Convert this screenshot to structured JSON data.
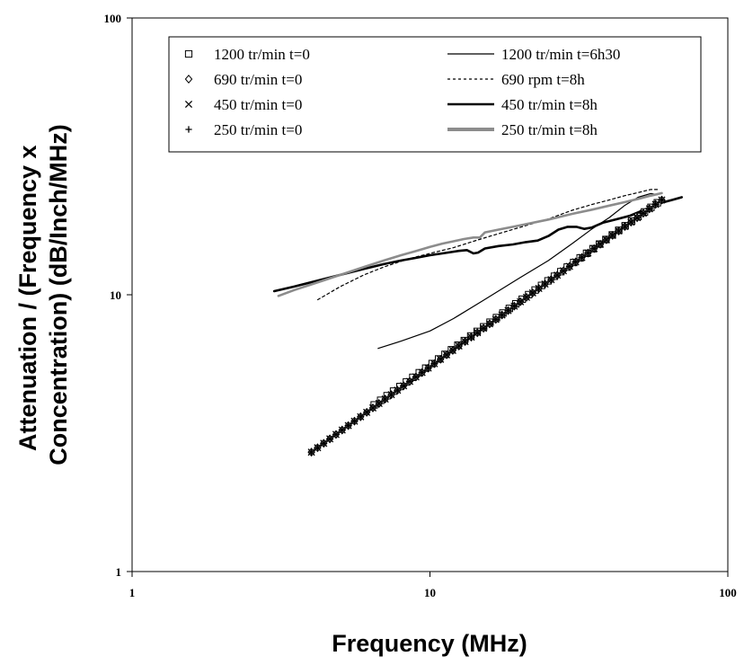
{
  "chart_data": {
    "type": "line",
    "x_scale": "log",
    "y_scale": "log",
    "xlim": [
      1,
      100
    ],
    "ylim": [
      1,
      100
    ],
    "x_ticks": [
      "1",
      "10",
      "100"
    ],
    "y_ticks": [
      "1",
      "10",
      "100"
    ],
    "xlabel": "Frequency (MHz)",
    "ylabel_lines": [
      "Attenuation / (Frequency x",
      "Concentration) (dB/Inch/MHz)"
    ],
    "grid": false,
    "legend_position": "top-right",
    "legend": [
      {
        "label": "1200 tr/min  t=0",
        "style": "square-marker"
      },
      {
        "label": "1200 tr/min  t=6h30",
        "style": "thin-line"
      },
      {
        "label": "690 tr/min  t=0",
        "style": "diamond-marker"
      },
      {
        "label": "690 rpm  t=8h",
        "style": "dashed-line"
      },
      {
        "label": "450 tr/min t=0",
        "style": "x-marker"
      },
      {
        "label": "450 tr/min t=8h",
        "style": "thick-black-line"
      },
      {
        "label": "250 tr/min t=0",
        "style": "plus-marker"
      },
      {
        "label": "250 tr/min t=8h",
        "style": "thick-gray-line"
      }
    ],
    "series": [
      {
        "name": "1200 tr/min  t=0",
        "marker": "square",
        "x_start": 6.5,
        "x_end": 58,
        "y_start": 4.0,
        "y_end": 21.5,
        "count": 45
      },
      {
        "name": "690 tr/min  t=0",
        "marker": "diamond",
        "x_start": 4.0,
        "x_end": 60,
        "y_start": 2.7,
        "y_end": 22,
        "count": 58
      },
      {
        "name": "450 tr/min t=0",
        "marker": "x",
        "x_start": 4.0,
        "x_end": 60,
        "y_start": 2.7,
        "y_end": 22,
        "count": 58
      },
      {
        "name": "250 tr/min t=0",
        "marker": "plus",
        "x_start": 4.0,
        "x_end": 60,
        "y_start": 2.7,
        "y_end": 22,
        "count": 58
      },
      {
        "name": "1200 tr/min  t=6h30",
        "line": "thin",
        "color": "#000000",
        "points": [
          [
            6.7,
            6.4
          ],
          [
            8,
            6.8
          ],
          [
            10,
            7.4
          ],
          [
            12,
            8.2
          ],
          [
            15,
            9.5
          ],
          [
            20,
            11.5
          ],
          [
            25,
            13.3
          ],
          [
            30,
            15.3
          ],
          [
            35,
            17.3
          ],
          [
            40,
            19
          ],
          [
            45,
            21
          ],
          [
            50,
            22.5
          ],
          [
            55,
            23.2
          ],
          [
            58,
            23
          ]
        ]
      },
      {
        "name": "690 rpm  t=8h",
        "line": "dashed",
        "color": "#000000",
        "points": [
          [
            4.2,
            9.6
          ],
          [
            5,
            10.7
          ],
          [
            6,
            11.8
          ],
          [
            7,
            12.6
          ],
          [
            8.5,
            13.5
          ],
          [
            10,
            14.1
          ],
          [
            12,
            14.8
          ],
          [
            14,
            15.6
          ],
          [
            16,
            16.3
          ],
          [
            20,
            17.5
          ],
          [
            25,
            18.8
          ],
          [
            30,
            20.2
          ],
          [
            35,
            21.2
          ],
          [
            40,
            22
          ],
          [
            45,
            22.8
          ],
          [
            50,
            23.4
          ],
          [
            55,
            24
          ],
          [
            58,
            24
          ]
        ]
      },
      {
        "name": "450 tr/min t=8h",
        "line": "thick",
        "color": "#000000",
        "points": [
          [
            3,
            10.3
          ],
          [
            3.5,
            10.7
          ],
          [
            4,
            11.1
          ],
          [
            5,
            11.8
          ],
          [
            6,
            12.4
          ],
          [
            7,
            12.9
          ],
          [
            8,
            13.3
          ],
          [
            9,
            13.6
          ],
          [
            10,
            13.9
          ],
          [
            11,
            14.1
          ],
          [
            12.5,
            14.4
          ],
          [
            13.3,
            14.5
          ],
          [
            14,
            14.1
          ],
          [
            14.5,
            14.2
          ],
          [
            15.3,
            14.7
          ],
          [
            17,
            15.0
          ],
          [
            19,
            15.2
          ],
          [
            21,
            15.5
          ],
          [
            23,
            15.7
          ],
          [
            25,
            16.3
          ],
          [
            27,
            17.2
          ],
          [
            29,
            17.6
          ],
          [
            31,
            17.6
          ],
          [
            33,
            17.3
          ],
          [
            35,
            17.5
          ],
          [
            38,
            18.2
          ],
          [
            42,
            18.7
          ],
          [
            47,
            19.3
          ],
          [
            52,
            20.2
          ],
          [
            58,
            21.3
          ],
          [
            65,
            22.0
          ],
          [
            70,
            22.5
          ]
        ]
      },
      {
        "name": "250 tr/min t=8h",
        "line": "thick",
        "color": "#8c8c8c",
        "points": [
          [
            3.1,
            9.9
          ],
          [
            3.5,
            10.4
          ],
          [
            4,
            10.9
          ],
          [
            5,
            11.8
          ],
          [
            6,
            12.6
          ],
          [
            7,
            13.3
          ],
          [
            8,
            13.9
          ],
          [
            9,
            14.4
          ],
          [
            10,
            14.9
          ],
          [
            11,
            15.3
          ],
          [
            12,
            15.6
          ],
          [
            13,
            15.9
          ],
          [
            14,
            16.1
          ],
          [
            14.7,
            16.1
          ],
          [
            15.3,
            16.8
          ],
          [
            17,
            17.2
          ],
          [
            20,
            17.8
          ],
          [
            25,
            18.7
          ],
          [
            30,
            19.6
          ],
          [
            35,
            20.3
          ],
          [
            40,
            21
          ],
          [
            45,
            21.6
          ],
          [
            50,
            22.2
          ],
          [
            55,
            22.8
          ],
          [
            60,
            23.3
          ]
        ]
      }
    ]
  }
}
